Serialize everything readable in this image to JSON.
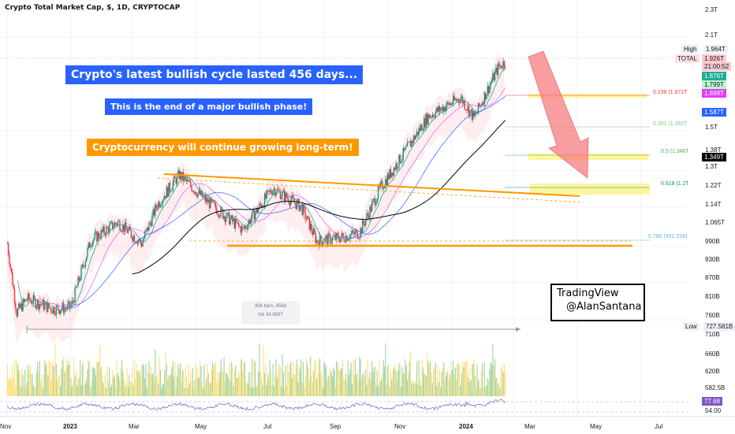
{
  "header": {
    "title": "Crypto Total Market Cap, $, 1D, CRYPTOCAP"
  },
  "callouts": {
    "headline": "Crypto's latest bullish cycle lasted 456 days...",
    "subhead": "This is the end of a major bullish phase!",
    "longterm": "Cryptocurrency will continue growing long-term!"
  },
  "watermark": {
    "line1": "TradingView",
    "line2": "@AlanSantana"
  },
  "measure": {
    "bars": "456 bars, 456d",
    "vol": "Vol 34.969T"
  },
  "price_axis": {
    "labels": [
      "2.3T",
      "2.1T",
      "1.5T",
      "1.38T",
      "1.3T",
      "1.22T",
      "1.14T",
      "1.065T",
      "990B",
      "930B",
      "870B",
      "810B",
      "760B",
      "710B",
      "660B",
      "620B",
      "582.5B",
      "54.00"
    ],
    "high_label": "High",
    "high_value": "1.964T",
    "total_label": "TOTAL",
    "total_value": "1.926T",
    "countdown": "21:00:52",
    "ma1": "1.876T",
    "ma2": "1.799T",
    "ma3": "1.698T",
    "ma4": "1.587T",
    "ma5": "1.349T",
    "low_label": "Low",
    "low_value": "727.581B",
    "rsi_value": "77.68"
  },
  "time_axis": {
    "labels": [
      "Nov",
      "2023",
      "Mar",
      "May",
      "Jul",
      "Sep",
      "Nov",
      "2024",
      "Mar",
      "May",
      "Jul"
    ]
  },
  "fib_levels": [
    {
      "label": "0.236 (1.672T)",
      "color": "#f23645"
    },
    {
      "label": "0.382 (1.492T)",
      "color": "#81c784"
    },
    {
      "label": "0.5 (1.346T)",
      "color": "#4caf50"
    },
    {
      "label": "0.618 (1.2T)",
      "color": "#089981"
    },
    {
      "label": "0.786 (992.258)",
      "color": "#64b5f6"
    }
  ],
  "colors": {
    "up": "#089981",
    "down": "#f23645",
    "trend": "#ff9800",
    "callout_blue": "#2962ff",
    "callout_orange": "#ff9800",
    "fib_zone": "#fff59d",
    "arrow": "#f77c80"
  },
  "chart_data": {
    "type": "candlestick",
    "title": "Crypto Total Market Cap, $, 1D, CRYPTOCAP",
    "y_scale": "log",
    "ylim": [
      700,
      2400
    ],
    "x_range": [
      "2022-11",
      "2024-08"
    ],
    "series": [
      {
        "name": "TOTAL",
        "x": [
          "2022-11-01",
          "2022-11-10",
          "2022-11-20",
          "2022-12-15",
          "2023-01-01",
          "2023-01-20",
          "2023-02-15",
          "2023-03-10",
          "2023-03-25",
          "2023-04-15",
          "2023-05-10",
          "2023-06-15",
          "2023-07-14",
          "2023-08-10",
          "2023-08-25",
          "2023-09-15",
          "2023-10-05",
          "2023-10-25",
          "2023-11-15",
          "2023-12-10",
          "2024-01-10",
          "2024-01-23",
          "2024-02-05",
          "2024-02-15",
          "2024-02-22"
        ],
        "y": [
          1000,
          780,
          820,
          790,
          795,
          1010,
          1080,
          1000,
          1150,
          1280,
          1170,
          1050,
          1220,
          1140,
          1010,
          1020,
          1040,
          1220,
          1370,
          1580,
          1690,
          1570,
          1740,
          1880,
          1926
        ]
      }
    ],
    "annotations": {
      "high": 1964,
      "low": 727.581,
      "last": 1926,
      "cycle": {
        "bars": 456,
        "days": 456,
        "volume": "34.969T"
      },
      "fibonacci": [
        {
          "level": 0.236,
          "value": 1672
        },
        {
          "level": 0.382,
          "value": 1492
        },
        {
          "level": 0.5,
          "value": 1346
        },
        {
          "level": 0.618,
          "value": 1200
        },
        {
          "level": 0.786,
          "value": 992.258
        }
      ],
      "rsi_last": 77.68
    }
  }
}
